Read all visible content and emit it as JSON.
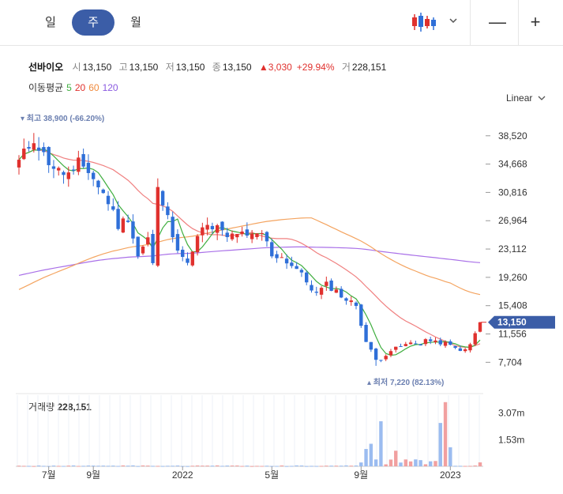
{
  "tabs": [
    {
      "label": "일"
    },
    {
      "label": "주",
      "active": true
    },
    {
      "label": "월"
    }
  ],
  "toolbar": {
    "chart_type_icon": "candlestick-icon",
    "dropdown_icon": "chevron-down-icon",
    "zoom_out": "—",
    "zoom_in": "+"
  },
  "info": {
    "name": "선바이오",
    "open_label": "시",
    "open": "13,150",
    "high_label": "고",
    "high": "13,150",
    "low_label": "저",
    "low": "13,150",
    "close_label": "종",
    "close": "13,150",
    "change": "▲3,030",
    "change_pct": "+29.94%",
    "volume_label": "거",
    "volume": "228,151"
  },
  "ma_legend": {
    "label": "이동평균",
    "p5": "5",
    "p20": "20",
    "p60": "60",
    "p120": "120"
  },
  "scale_mode": "Linear",
  "colors": {
    "up": "#e0312e",
    "down": "#2f6fd8",
    "ma5": "#3fae3f",
    "ma20": "#f08080",
    "ma60": "#f4a460",
    "ma120": "#a970e8",
    "price_tag": "#3b5da7",
    "vol_up": "#f1a0a0",
    "vol_down": "#9bbcf0"
  },
  "chart_data": {
    "type": "candlestick",
    "y_ticks": [
      "38,520",
      "34,668",
      "30,816",
      "26,964",
      "23,112",
      "19,260",
      "15,408",
      "11,556",
      "7,704"
    ],
    "ylim": [
      4300,
      41400
    ],
    "x_ticks": [
      {
        "label": "7월",
        "week": 6
      },
      {
        "label": "9월",
        "week": 15
      },
      {
        "label": "2022",
        "week": 33
      },
      {
        "label": "5월",
        "week": 51
      },
      {
        "label": "9월",
        "week": 69
      },
      {
        "label": "2023",
        "week": 87
      }
    ],
    "current_price": "13,150",
    "current_value": 13150,
    "high_note": "최고 38,900 (-66.20%)",
    "low_note": "최저 7,220 (82.13%)",
    "volume": {
      "title": "거래량",
      "value": "228,151",
      "ticks": [
        "3.07m",
        "1.53m"
      ],
      "ylim": [
        0,
        4100000
      ]
    },
    "ma_start": {
      "ma60": 17300,
      "ma120": 19400
    },
    "waypoints": [
      [
        0,
        35000
      ],
      [
        3,
        38200
      ],
      [
        5,
        35800
      ],
      [
        8,
        33600
      ],
      [
        11,
        33200
      ],
      [
        12,
        34800
      ],
      [
        14,
        33800
      ],
      [
        16,
        31600
      ],
      [
        18,
        29600
      ],
      [
        20,
        26400
      ],
      [
        22,
        27400
      ],
      [
        24,
        22200
      ],
      [
        26,
        24600
      ],
      [
        27,
        21000
      ],
      [
        28,
        31300
      ],
      [
        30,
        27200
      ],
      [
        32,
        23500
      ],
      [
        34,
        20800
      ],
      [
        35,
        23200
      ],
      [
        37,
        25900
      ],
      [
        40,
        26000
      ],
      [
        42,
        24600
      ],
      [
        44,
        25400
      ],
      [
        46,
        24600
      ],
      [
        49,
        25300
      ],
      [
        51,
        22400
      ],
      [
        53,
        22000
      ],
      [
        56,
        20400
      ],
      [
        59,
        17800
      ],
      [
        60,
        17000
      ],
      [
        62,
        18300
      ],
      [
        64,
        17400
      ],
      [
        66,
        16200
      ],
      [
        68,
        15500
      ],
      [
        70,
        10500
      ],
      [
        72,
        8000
      ],
      [
        73,
        8200
      ],
      [
        75,
        9300
      ],
      [
        77,
        9900
      ],
      [
        79,
        10300
      ],
      [
        81,
        10200
      ],
      [
        82,
        10800
      ],
      [
        84,
        10400
      ],
      [
        86,
        10300
      ],
      [
        88,
        9600
      ],
      [
        90,
        9300
      ],
      [
        91,
        10100
      ],
      [
        93,
        13150
      ]
    ],
    "candles": []
  }
}
